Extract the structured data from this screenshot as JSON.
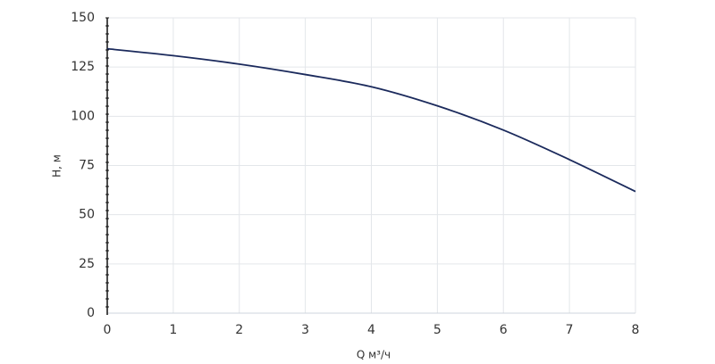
{
  "chart_data": {
    "type": "line",
    "x_label": "Q м³/ч",
    "y_label": "H, м",
    "x": [
      0,
      1,
      2,
      3,
      4,
      5,
      6,
      7,
      8
    ],
    "series": [
      {
        "color": "#1b2a5c",
        "values": [
          134.3,
          130.8,
          126.5,
          121.2,
          115,
          105.3,
          93,
          78,
          61.8
        ]
      }
    ],
    "xlim": [
      0,
      8
    ],
    "xticks": [
      0,
      1,
      2,
      3,
      4,
      5,
      6,
      7,
      8
    ],
    "ylim": [
      0,
      150
    ],
    "yticks": [
      0,
      25,
      50,
      75,
      100,
      125,
      150
    ],
    "grid": true
  }
}
